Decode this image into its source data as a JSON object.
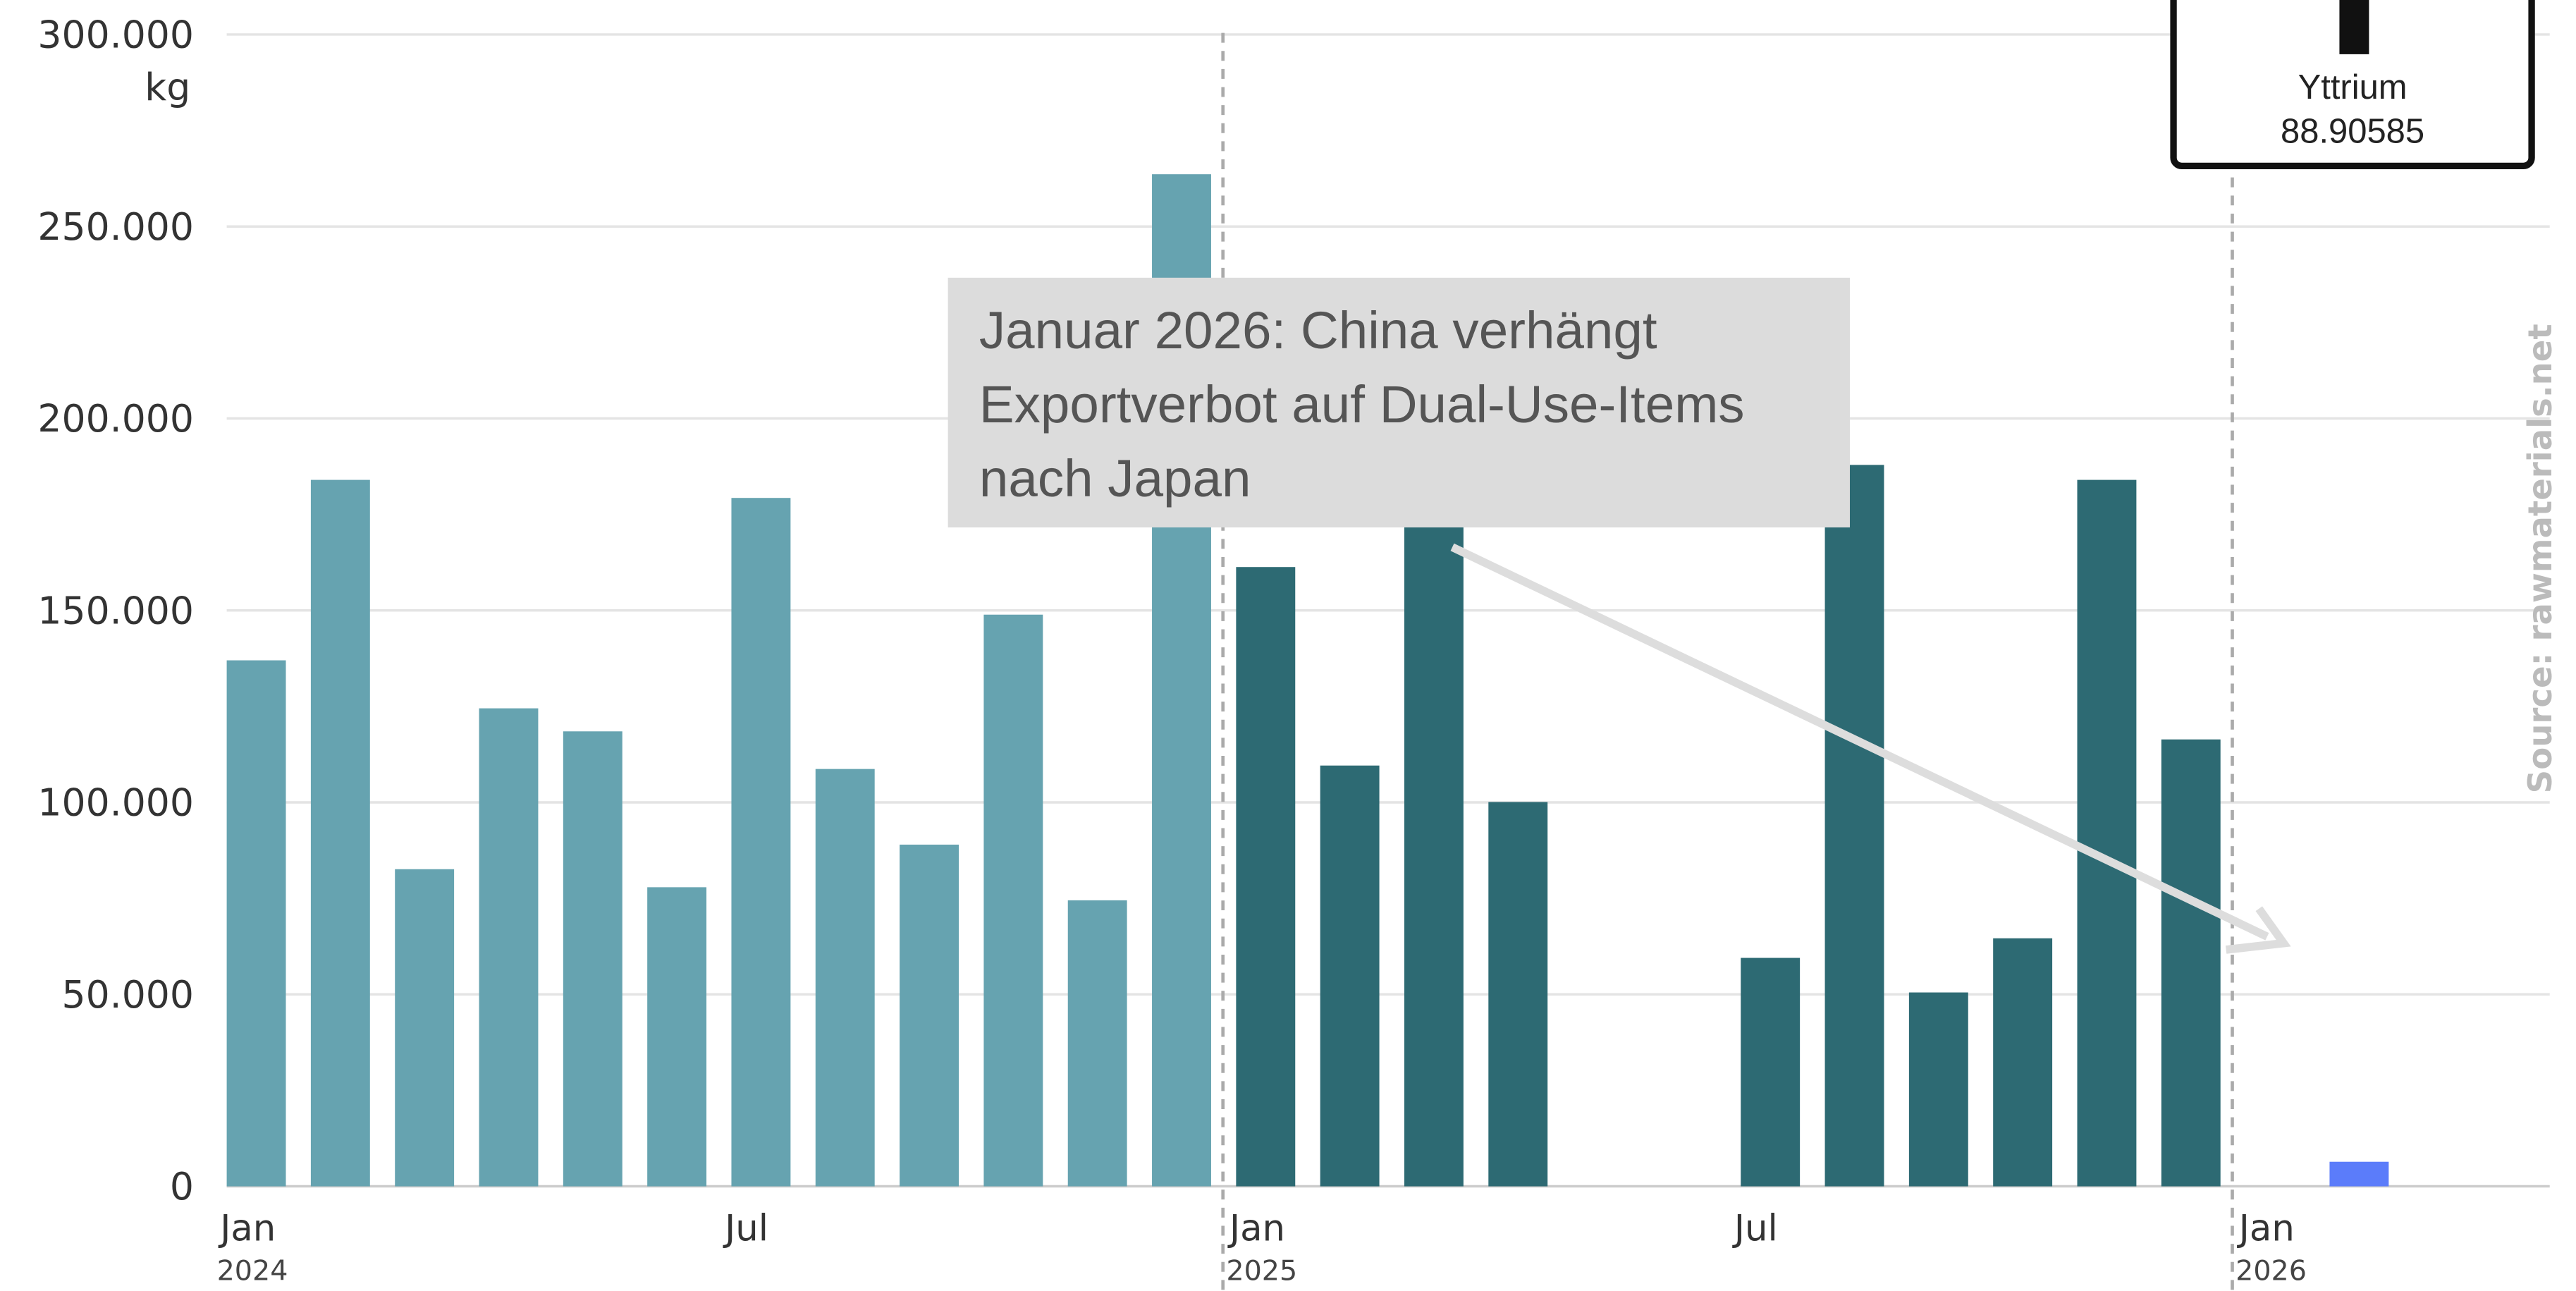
{
  "chart_data": {
    "type": "bar",
    "unit": "kg",
    "categories": [
      "Jan",
      null,
      null,
      null,
      null,
      null,
      "Jul",
      null,
      null,
      null,
      null,
      null,
      "Jan",
      null,
      null,
      null,
      null,
      null,
      "Jul",
      null,
      null,
      null,
      null,
      null,
      "Jan",
      null
    ],
    "year_labels": [
      "2024",
      "2025",
      "2026"
    ],
    "values": [
      137000,
      184000,
      82600,
      124500,
      118500,
      77900,
      179300,
      108700,
      89000,
      148900,
      74500,
      263600,
      161300,
      109600,
      205000,
      100100,
      null,
      null,
      59500,
      187900,
      50500,
      64600,
      184000,
      116400,
      null,
      6400
    ],
    "colors": [
      "#66a3b0",
      "#66a3b0",
      "#66a3b0",
      "#66a3b0",
      "#66a3b0",
      "#66a3b0",
      "#66a3b0",
      "#66a3b0",
      "#66a3b0",
      "#66a3b0",
      "#66a3b0",
      "#66a3b0",
      "#2d6a73",
      "#2d6a73",
      "#2d6a73",
      "#2d6a73",
      "#2d6a73",
      "#2d6a73",
      "#2d6a73",
      "#2d6a73",
      "#2d6a73",
      "#2d6a73",
      "#2d6a73",
      "#2d6a73",
      "#5b7cfa",
      "#5b7cfa"
    ],
    "ylim": [
      0,
      300000
    ],
    "yticks": [
      0,
      {
        "value": 50000,
        "label": "50.000"
      },
      {
        "value": 100000,
        "label": "100.000"
      },
      {
        "value": 150000,
        "label": "150.000"
      },
      {
        "value": 200000,
        "label": "200.000"
      },
      {
        "value": 250000,
        "label": "250.000"
      },
      {
        "value": 300000,
        "label": "300.000"
      }
    ],
    "grid": true,
    "annotation": [
      "Januar 2026: China verhängt",
      "Exportverbot auf Dual-Use-Items",
      "nach Japan"
    ],
    "element": {
      "name": "Yttrium",
      "mass": "88.90585"
    },
    "source": "Source: rawmaterials.net"
  }
}
